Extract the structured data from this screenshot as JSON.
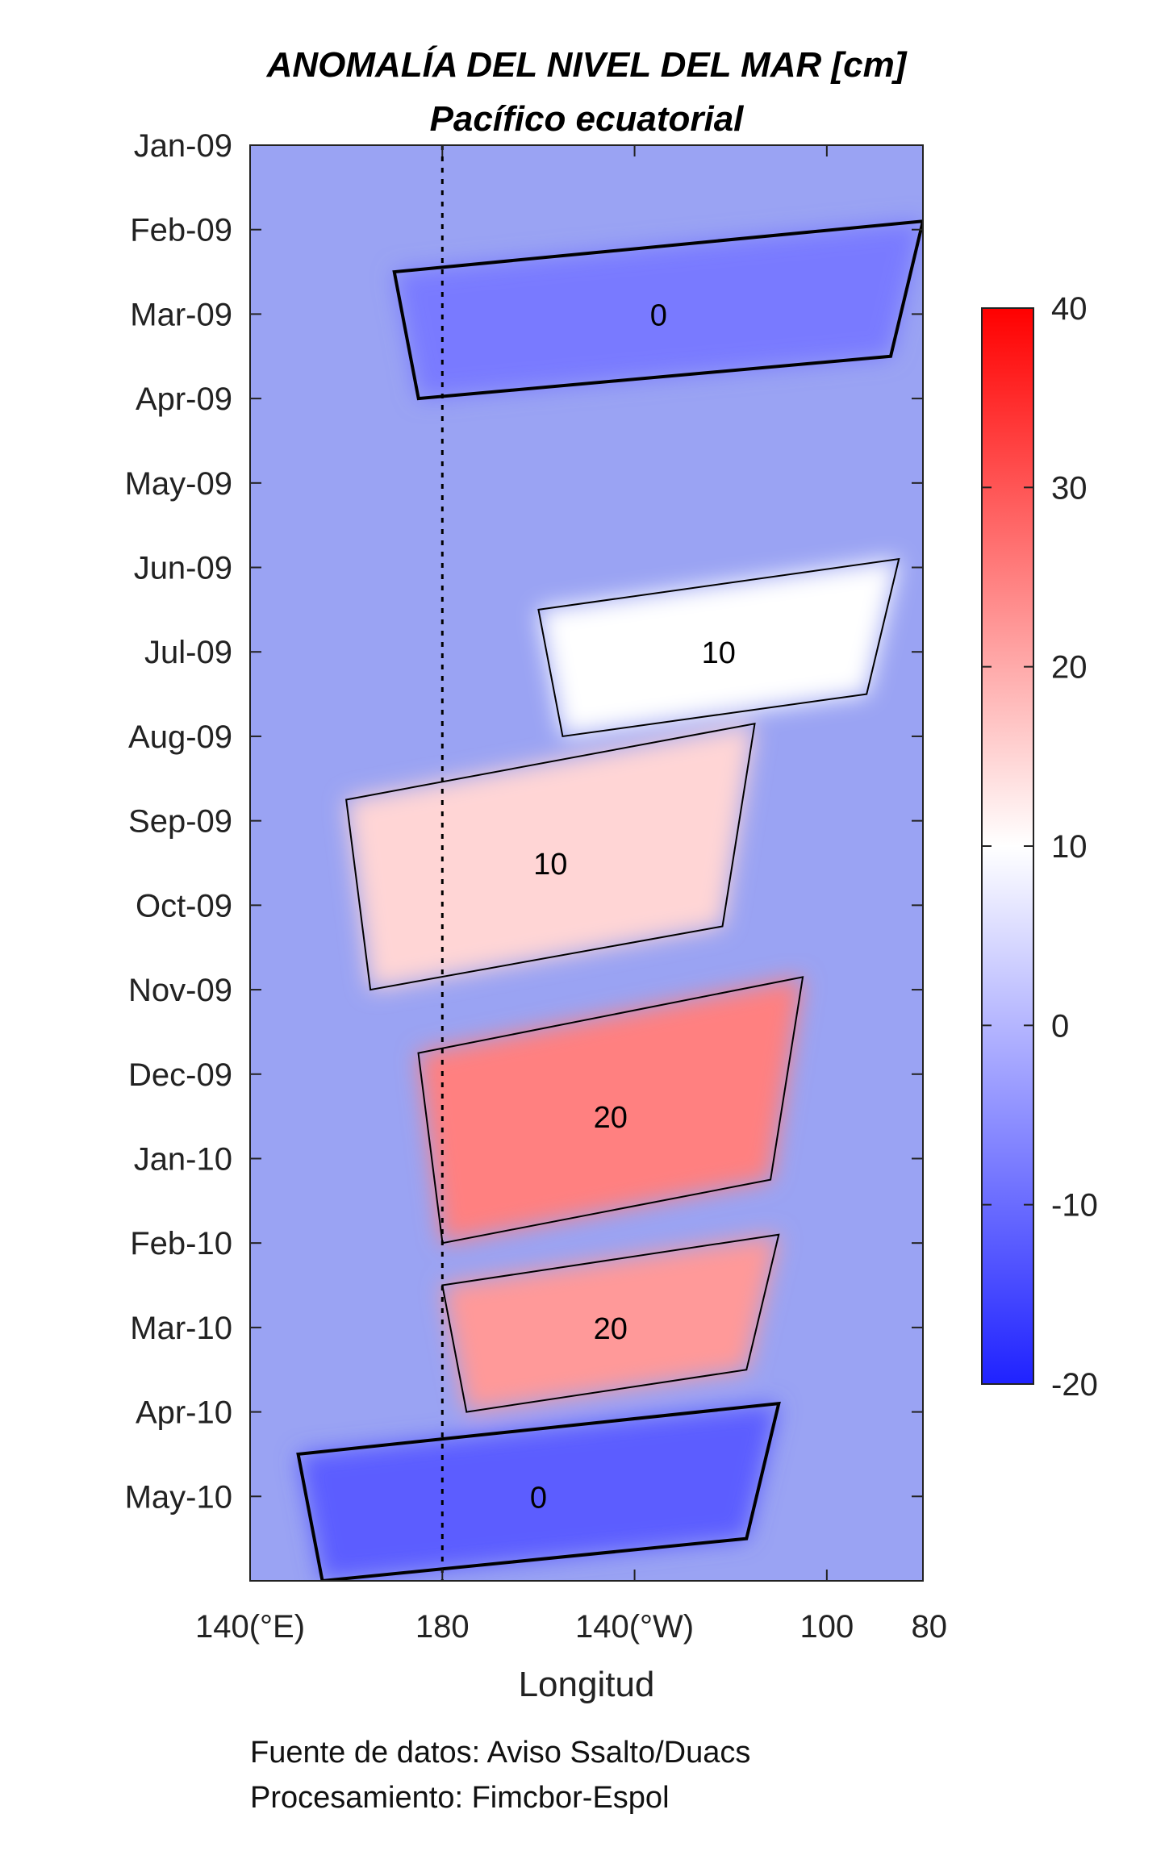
{
  "chart_data": {
    "type": "heatmap",
    "title": "ANOMALÍA DEL NIVEL DEL MAR [cm]",
    "subtitle": "Pacífico ecuatorial",
    "xlabel": "Longitud",
    "ylabel": "",
    "x_ticks": [
      {
        "lon_east": 140,
        "label": "140(°E)"
      },
      {
        "lon_east": 180,
        "label": "180"
      },
      {
        "lon_east": 220,
        "label": "140(°W)"
      },
      {
        "lon_east": 260,
        "label": "100"
      },
      {
        "lon_east": 280,
        "label": "80"
      }
    ],
    "xlim": [
      140,
      280
    ],
    "y_ticks": [
      "Jan-09",
      "Feb-09",
      "Mar-09",
      "Apr-09",
      "May-09",
      "Jun-09",
      "Jul-09",
      "Aug-09",
      "Sep-09",
      "Oct-09",
      "Nov-09",
      "Dec-09",
      "Jan-10",
      "Feb-10",
      "Mar-10",
      "Apr-10",
      "May-10"
    ],
    "y_reversed": true,
    "reference_line": {
      "lon_east": 180,
      "style": "dotted"
    },
    "colorbar": {
      "min": -20,
      "max": 40,
      "ticks": [
        40,
        30,
        20,
        10,
        0,
        -10,
        -20
      ],
      "colors": {
        "low": "#1f22ff",
        "mid": "#ffffff",
        "high": "#ff0000"
      },
      "mid_value": 10
    },
    "contour_levels": [
      0,
      10,
      20
    ],
    "anomaly_features": [
      {
        "label": "20",
        "months": [
          "Nov-09",
          "Dec-09",
          "Jan-10"
        ],
        "lon_range": [
          175,
          255
        ],
        "peak_cm": 25
      },
      {
        "label": "20",
        "months": [
          "Feb-10",
          "Mar-10"
        ],
        "lon_range": [
          180,
          250
        ],
        "peak_cm": 22
      },
      {
        "label": "10",
        "months": [
          "Aug-09",
          "Sep-09",
          "Oct-09"
        ],
        "lon_range": [
          160,
          245
        ],
        "peak_cm": 15
      },
      {
        "label": "10",
        "months": [
          "Jun-09",
          "Jul-09"
        ],
        "lon_range": [
          200,
          275
        ],
        "peak_cm": 10
      },
      {
        "label": "0",
        "months": [
          "Feb-09",
          "Mar-09"
        ],
        "lon_range": [
          170,
          280
        ],
        "peak_cm": -8
      },
      {
        "label": "0",
        "months": [
          "Apr-10",
          "May-10"
        ],
        "lon_range": [
          150,
          250
        ],
        "peak_cm": -12
      }
    ]
  },
  "footer": {
    "source_line": "Fuente de datos: Aviso Ssalto/Duacs",
    "processing_line": "Procesamiento: Fimcbor-Espol"
  }
}
